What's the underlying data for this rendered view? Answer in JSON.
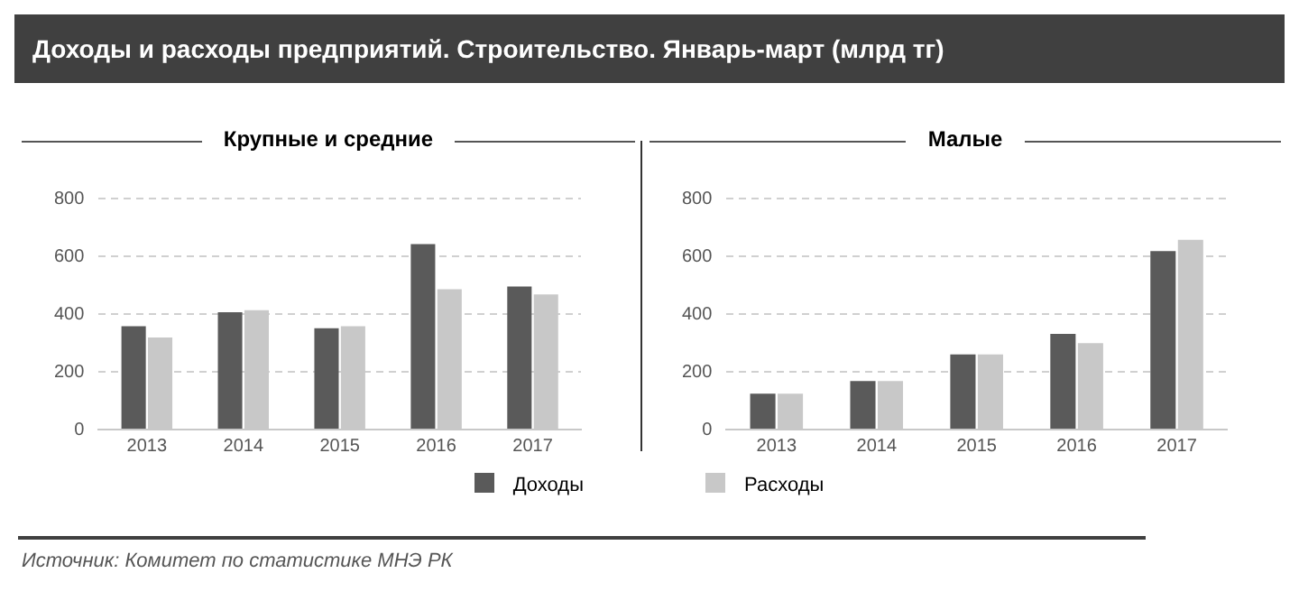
{
  "chart_data": [
    {
      "type": "bar",
      "title": "Крупные  и средние",
      "annotations": [
        "Доходы и расходы предприятий. Строительство.  Январь-март (млрд тг)"
      ],
      "categories": [
        "2013",
        "2014",
        "2015",
        "2016",
        "2017"
      ],
      "series": [
        {
          "name": "Доходы",
          "color": "#5a5a5a",
          "values": [
            358,
            406,
            351,
            642,
            495
          ]
        },
        {
          "name": "Расходы",
          "color": "#c8c8c8",
          "values": [
            319,
            413,
            358,
            486,
            468
          ]
        }
      ],
      "ylim": [
        0,
        800
      ],
      "yticks": [
        0,
        200,
        400,
        600,
        800
      ],
      "grid": "y",
      "legend": "bottom"
    },
    {
      "type": "bar",
      "title": "Малые",
      "annotations": [
        "Источник:  Комитет по статистике МНЭ РК"
      ],
      "categories": [
        "2013",
        "2014",
        "2015",
        "2016",
        "2017"
      ],
      "series": [
        {
          "color": "#5a5a5a",
          "values": [
            124,
            168,
            260,
            331,
            618
          ]
        },
        {
          "color": "#c8c8c8",
          "values": [
            124,
            168,
            260,
            299,
            657
          ]
        }
      ],
      "ylim": [
        0,
        800
      ],
      "yticks": [
        0,
        200,
        400,
        600,
        800
      ],
      "grid": "y"
    }
  ]
}
